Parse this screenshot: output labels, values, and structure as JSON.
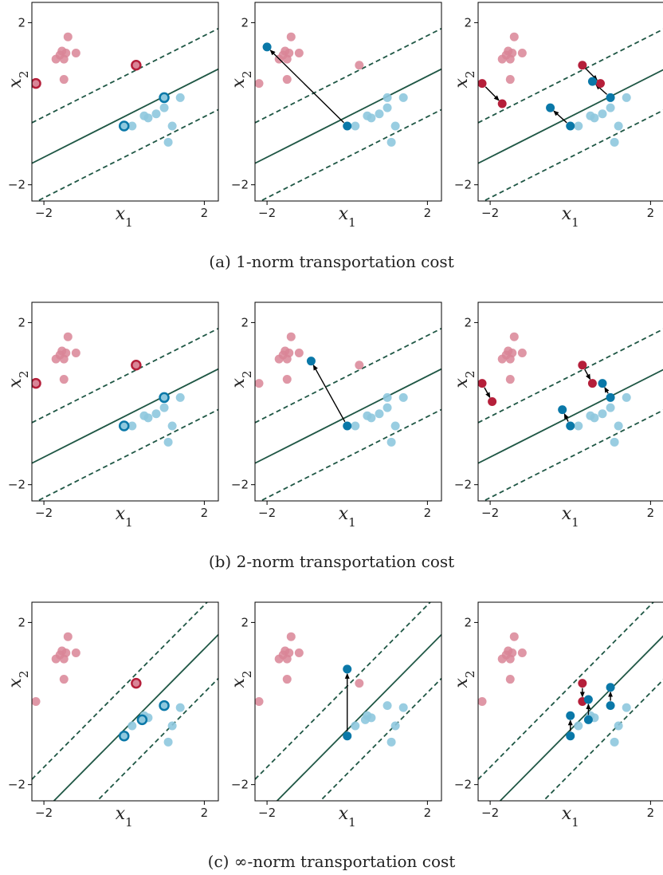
{
  "figure": {
    "captions": [
      "(a) 1-norm transportation cost",
      "(b) 2-norm transportation cost",
      "(c) ∞-norm transportation cost"
    ],
    "colors": {
      "red_faded": "#d98597",
      "red_strong": "#b51f3a",
      "blue_faded": "#8ec8de",
      "blue_strong": "#0a78a8",
      "line": "#1f5745",
      "arrow": "#000000"
    }
  },
  "chart_data": [
    {
      "type": "scatter",
      "row": "a",
      "panel": 1,
      "xlabel": "x_1",
      "ylabel": "x_2",
      "xlim": [
        -2.3,
        2.35
      ],
      "ylim": [
        -2.4,
        2.5
      ],
      "xticks": [
        -2,
        2
      ],
      "yticks": [
        -2,
        2
      ],
      "lines": {
        "slope": 0.5,
        "intercepts": [
          -0.32,
          0.68,
          -1.32
        ],
        "styles": [
          "solid",
          "dashed",
          "dashed"
        ]
      },
      "faded_red": [
        [
          -1.6,
          1.2
        ],
        [
          -1.4,
          1.65
        ],
        [
          -1.2,
          1.25
        ],
        [
          -1.7,
          1.1
        ],
        [
          -1.5,
          1.1
        ],
        [
          -1.45,
          1.25
        ],
        [
          -1.55,
          1.3
        ],
        [
          -1.5,
          0.6
        ]
      ],
      "faded_blue": [
        [
          0.8,
          -0.25
        ],
        [
          1.2,
          -0.55
        ],
        [
          0.2,
          -0.55
        ],
        [
          0.6,
          -0.35
        ],
        [
          0.5,
          -0.3
        ],
        [
          1.0,
          -0.1
        ],
        [
          1.4,
          0.15
        ],
        [
          1.1,
          -0.95
        ]
      ],
      "highlight_red": [
        [
          -2.2,
          0.5
        ],
        [
          0.3,
          0.95
        ]
      ],
      "highlight_blue": [
        [
          0.0,
          -0.55
        ],
        [
          1.0,
          0.15
        ]
      ],
      "points_red": [],
      "points_blue": [],
      "arrows": []
    },
    {
      "type": "scatter",
      "row": "a",
      "panel": 2,
      "xlabel": "x_1",
      "ylabel": "x_2",
      "xlim": [
        -2.3,
        2.35
      ],
      "ylim": [
        -2.4,
        2.5
      ],
      "xticks": [
        -2,
        2
      ],
      "yticks": [
        -2,
        2
      ],
      "lines": {
        "slope": 0.5,
        "intercepts": [
          -0.32,
          0.68,
          -1.32
        ],
        "styles": [
          "solid",
          "dashed",
          "dashed"
        ]
      },
      "faded_red": [
        [
          -1.6,
          1.2
        ],
        [
          -1.4,
          1.65
        ],
        [
          -1.2,
          1.25
        ],
        [
          -1.7,
          1.1
        ],
        [
          -1.5,
          1.1
        ],
        [
          -1.45,
          1.25
        ],
        [
          -1.55,
          1.3
        ],
        [
          -1.5,
          0.6
        ],
        [
          -2.2,
          0.5
        ],
        [
          0.3,
          0.95
        ]
      ],
      "faded_blue": [
        [
          0.8,
          -0.25
        ],
        [
          1.2,
          -0.55
        ],
        [
          0.2,
          -0.55
        ],
        [
          0.6,
          -0.35
        ],
        [
          0.5,
          -0.3
        ],
        [
          1.0,
          -0.1
        ],
        [
          1.4,
          0.15
        ],
        [
          1.1,
          -0.95
        ],
        [
          1.0,
          0.15
        ]
      ],
      "highlight_red": [],
      "highlight_blue": [],
      "points_red": [],
      "points_blue": [
        [
          0.0,
          -0.55
        ],
        [
          -2.0,
          1.4
        ]
      ],
      "arrows": [
        [
          [
            0.0,
            -0.55
          ],
          [
            -2.0,
            1.4
          ]
        ]
      ]
    },
    {
      "type": "scatter",
      "row": "a",
      "panel": 3,
      "xlabel": "x_1",
      "ylabel": "x_2",
      "xlim": [
        -2.3,
        2.35
      ],
      "ylim": [
        -2.4,
        2.5
      ],
      "xticks": [
        -2,
        2
      ],
      "yticks": [
        -2,
        2
      ],
      "lines": {
        "slope": 0.5,
        "intercepts": [
          -0.32,
          0.68,
          -1.32
        ],
        "styles": [
          "solid",
          "dashed",
          "dashed"
        ]
      },
      "faded_red": [
        [
          -1.6,
          1.2
        ],
        [
          -1.4,
          1.65
        ],
        [
          -1.2,
          1.25
        ],
        [
          -1.7,
          1.1
        ],
        [
          -1.5,
          1.1
        ],
        [
          -1.45,
          1.25
        ],
        [
          -1.55,
          1.3
        ],
        [
          -1.5,
          0.6
        ]
      ],
      "faded_blue": [
        [
          0.8,
          -0.25
        ],
        [
          1.2,
          -0.55
        ],
        [
          0.2,
          -0.55
        ],
        [
          0.6,
          -0.35
        ],
        [
          0.5,
          -0.3
        ],
        [
          1.0,
          -0.1
        ],
        [
          1.4,
          0.15
        ],
        [
          1.1,
          -0.95
        ]
      ],
      "highlight_red": [],
      "highlight_blue": [],
      "points_red": [
        [
          -2.2,
          0.5
        ],
        [
          -1.7,
          0.0
        ],
        [
          0.3,
          0.95
        ],
        [
          0.75,
          0.5
        ]
      ],
      "points_blue": [
        [
          0.0,
          -0.55
        ],
        [
          -0.5,
          -0.1
        ],
        [
          1.0,
          0.15
        ],
        [
          0.55,
          0.55
        ]
      ],
      "arrows": [
        [
          [
            -2.2,
            0.5
          ],
          [
            -1.7,
            0.0
          ]
        ],
        [
          [
            0.3,
            0.95
          ],
          [
            0.75,
            0.5
          ]
        ],
        [
          [
            0.0,
            -0.55
          ],
          [
            -0.5,
            -0.1
          ]
        ],
        [
          [
            1.0,
            0.15
          ],
          [
            0.55,
            0.55
          ]
        ]
      ]
    },
    {
      "type": "scatter",
      "row": "b",
      "panel": 1,
      "xlabel": "x_1",
      "ylabel": "x_2",
      "xlim": [
        -2.3,
        2.35
      ],
      "ylim": [
        -2.4,
        2.5
      ],
      "xticks": [
        -2,
        2
      ],
      "yticks": [
        -2,
        2
      ],
      "lines": {
        "slope": 0.5,
        "intercepts": [
          -0.32,
          0.68,
          -1.32
        ],
        "styles": [
          "solid",
          "dashed",
          "dashed"
        ]
      },
      "faded_red": [
        [
          -1.6,
          1.2
        ],
        [
          -1.4,
          1.65
        ],
        [
          -1.2,
          1.25
        ],
        [
          -1.7,
          1.1
        ],
        [
          -1.5,
          1.1
        ],
        [
          -1.45,
          1.25
        ],
        [
          -1.55,
          1.3
        ],
        [
          -1.5,
          0.6
        ]
      ],
      "faded_blue": [
        [
          0.8,
          -0.25
        ],
        [
          1.2,
          -0.55
        ],
        [
          0.2,
          -0.55
        ],
        [
          0.6,
          -0.35
        ],
        [
          0.5,
          -0.3
        ],
        [
          1.0,
          -0.1
        ],
        [
          1.4,
          0.15
        ],
        [
          1.1,
          -0.95
        ]
      ],
      "highlight_red": [
        [
          -2.2,
          0.5
        ],
        [
          0.3,
          0.95
        ]
      ],
      "highlight_blue": [
        [
          0.0,
          -0.55
        ],
        [
          1.0,
          0.15
        ]
      ],
      "points_red": [],
      "points_blue": [],
      "arrows": []
    },
    {
      "type": "scatter",
      "row": "b",
      "panel": 2,
      "xlabel": "x_1",
      "ylabel": "x_2",
      "xlim": [
        -2.3,
        2.35
      ],
      "ylim": [
        -2.4,
        2.5
      ],
      "xticks": [
        -2,
        2
      ],
      "yticks": [
        -2,
        2
      ],
      "lines": {
        "slope": 0.5,
        "intercepts": [
          -0.32,
          0.68,
          -1.32
        ],
        "styles": [
          "solid",
          "dashed",
          "dashed"
        ]
      },
      "faded_red": [
        [
          -1.6,
          1.2
        ],
        [
          -1.4,
          1.65
        ],
        [
          -1.2,
          1.25
        ],
        [
          -1.7,
          1.1
        ],
        [
          -1.5,
          1.1
        ],
        [
          -1.45,
          1.25
        ],
        [
          -1.55,
          1.3
        ],
        [
          -1.5,
          0.6
        ],
        [
          -2.2,
          0.5
        ],
        [
          0.3,
          0.95
        ]
      ],
      "faded_blue": [
        [
          0.8,
          -0.25
        ],
        [
          1.2,
          -0.55
        ],
        [
          0.2,
          -0.55
        ],
        [
          0.6,
          -0.35
        ],
        [
          0.5,
          -0.3
        ],
        [
          1.0,
          -0.1
        ],
        [
          1.4,
          0.15
        ],
        [
          1.1,
          -0.95
        ],
        [
          1.0,
          0.15
        ]
      ],
      "highlight_red": [],
      "highlight_blue": [],
      "points_red": [],
      "points_blue": [
        [
          0.0,
          -0.55
        ],
        [
          -0.9,
          1.05
        ]
      ],
      "arrows": [
        [
          [
            0.0,
            -0.55
          ],
          [
            -0.9,
            1.05
          ]
        ]
      ]
    },
    {
      "type": "scatter",
      "row": "b",
      "panel": 3,
      "xlabel": "x_1",
      "ylabel": "x_2",
      "xlim": [
        -2.3,
        2.35
      ],
      "ylim": [
        -2.4,
        2.5
      ],
      "xticks": [
        -2,
        2
      ],
      "yticks": [
        -2,
        2
      ],
      "lines": {
        "slope": 0.5,
        "intercepts": [
          -0.32,
          0.68,
          -1.32
        ],
        "styles": [
          "solid",
          "dashed",
          "dashed"
        ]
      },
      "faded_red": [
        [
          -1.6,
          1.2
        ],
        [
          -1.4,
          1.65
        ],
        [
          -1.2,
          1.25
        ],
        [
          -1.7,
          1.1
        ],
        [
          -1.5,
          1.1
        ],
        [
          -1.45,
          1.25
        ],
        [
          -1.55,
          1.3
        ],
        [
          -1.5,
          0.6
        ]
      ],
      "faded_blue": [
        [
          0.8,
          -0.25
        ],
        [
          1.2,
          -0.55
        ],
        [
          0.2,
          -0.55
        ],
        [
          0.6,
          -0.35
        ],
        [
          0.5,
          -0.3
        ],
        [
          1.0,
          -0.1
        ],
        [
          1.4,
          0.15
        ],
        [
          1.1,
          -0.95
        ]
      ],
      "highlight_red": [],
      "highlight_blue": [],
      "points_red": [
        [
          -2.2,
          0.5
        ],
        [
          -1.95,
          0.05
        ],
        [
          0.3,
          0.95
        ],
        [
          0.55,
          0.5
        ]
      ],
      "points_blue": [
        [
          0.0,
          -0.55
        ],
        [
          -0.2,
          -0.15
        ],
        [
          1.0,
          0.15
        ],
        [
          0.8,
          0.5
        ]
      ],
      "arrows": [
        [
          [
            -2.2,
            0.5
          ],
          [
            -1.95,
            0.05
          ]
        ],
        [
          [
            0.3,
            0.95
          ],
          [
            0.55,
            0.5
          ]
        ],
        [
          [
            0.0,
            -0.55
          ],
          [
            -0.2,
            -0.15
          ]
        ],
        [
          [
            1.0,
            0.15
          ],
          [
            0.8,
            0.5
          ]
        ]
      ]
    },
    {
      "type": "scatter",
      "row": "c",
      "panel": 1,
      "xlabel": "x_1",
      "ylabel": "x_2",
      "xlim": [
        -2.3,
        2.35
      ],
      "ylim": [
        -2.4,
        2.5
      ],
      "xticks": [
        -2,
        2
      ],
      "yticks": [
        -2,
        2
      ],
      "lines": {
        "slope": 1,
        "intercepts": [
          -0.65,
          0.43,
          -1.73
        ],
        "styles": [
          "solid",
          "dashed",
          "dashed"
        ]
      },
      "faded_red": [
        [
          -1.6,
          1.2
        ],
        [
          -1.4,
          1.65
        ],
        [
          -1.2,
          1.25
        ],
        [
          -1.7,
          1.1
        ],
        [
          -1.5,
          1.1
        ],
        [
          -1.45,
          1.25
        ],
        [
          -1.55,
          1.3
        ],
        [
          -1.5,
          0.6
        ],
        [
          -2.2,
          0.05
        ]
      ],
      "faded_blue": [
        [
          1.2,
          -0.55
        ],
        [
          0.2,
          -0.55
        ],
        [
          0.6,
          -0.35
        ],
        [
          0.5,
          -0.3
        ],
        [
          1.4,
          -0.1
        ],
        [
          1.1,
          -0.95
        ]
      ],
      "highlight_red": [
        [
          0.3,
          0.5
        ]
      ],
      "highlight_blue": [
        [
          0.0,
          -0.8
        ],
        [
          0.45,
          -0.4
        ],
        [
          1.0,
          -0.05
        ]
      ],
      "points_red": [],
      "points_blue": [],
      "arrows": []
    },
    {
      "type": "scatter",
      "row": "c",
      "panel": 2,
      "xlabel": "x_1",
      "ylabel": "x_2",
      "xlim": [
        -2.3,
        2.35
      ],
      "ylim": [
        -2.4,
        2.5
      ],
      "xticks": [
        -2,
        2
      ],
      "yticks": [
        -2,
        2
      ],
      "lines": {
        "slope": 1,
        "intercepts": [
          -0.65,
          0.43,
          -1.73
        ],
        "styles": [
          "solid",
          "dashed",
          "dashed"
        ]
      },
      "faded_red": [
        [
          -1.6,
          1.2
        ],
        [
          -1.4,
          1.65
        ],
        [
          -1.2,
          1.25
        ],
        [
          -1.7,
          1.1
        ],
        [
          -1.5,
          1.1
        ],
        [
          -1.45,
          1.25
        ],
        [
          -1.55,
          1.3
        ],
        [
          -1.5,
          0.6
        ],
        [
          -2.2,
          0.05
        ],
        [
          0.3,
          0.5
        ]
      ],
      "faded_blue": [
        [
          1.2,
          -0.55
        ],
        [
          0.2,
          -0.55
        ],
        [
          0.6,
          -0.35
        ],
        [
          0.5,
          -0.3
        ],
        [
          1.4,
          -0.1
        ],
        [
          1.1,
          -0.95
        ],
        [
          0.45,
          -0.4
        ],
        [
          1.0,
          -0.05
        ]
      ],
      "highlight_red": [],
      "highlight_blue": [],
      "points_red": [],
      "points_blue": [
        [
          0.0,
          -0.8
        ],
        [
          0.0,
          0.85
        ]
      ],
      "arrows": [
        [
          [
            0.0,
            -0.8
          ],
          [
            0.0,
            0.85
          ]
        ]
      ]
    },
    {
      "type": "scatter",
      "row": "c",
      "panel": 3,
      "xlabel": "x_1",
      "ylabel": "x_2",
      "xlim": [
        -2.3,
        2.35
      ],
      "ylim": [
        -2.4,
        2.5
      ],
      "xticks": [
        -2,
        2
      ],
      "yticks": [
        -2,
        2
      ],
      "lines": {
        "slope": 1,
        "intercepts": [
          -0.65,
          0.43,
          -1.73
        ],
        "styles": [
          "solid",
          "dashed",
          "dashed"
        ]
      },
      "faded_red": [
        [
          -1.6,
          1.2
        ],
        [
          -1.4,
          1.65
        ],
        [
          -1.2,
          1.25
        ],
        [
          -1.7,
          1.1
        ],
        [
          -1.5,
          1.1
        ],
        [
          -1.45,
          1.25
        ],
        [
          -1.55,
          1.3
        ],
        [
          -1.5,
          0.6
        ],
        [
          -2.2,
          0.05
        ]
      ],
      "faded_blue": [
        [
          1.2,
          -0.55
        ],
        [
          0.2,
          -0.55
        ],
        [
          0.6,
          -0.35
        ],
        [
          0.5,
          -0.3
        ],
        [
          1.4,
          -0.1
        ],
        [
          1.1,
          -0.95
        ]
      ],
      "highlight_red": [],
      "highlight_blue": [],
      "points_red": [
        [
          0.3,
          0.5
        ],
        [
          0.3,
          0.05
        ]
      ],
      "points_blue": [
        [
          0.0,
          -0.8
        ],
        [
          0.0,
          -0.3
        ],
        [
          0.45,
          -0.4
        ],
        [
          0.45,
          0.1
        ],
        [
          1.0,
          -0.05
        ],
        [
          1.0,
          0.4
        ]
      ],
      "arrows": [
        [
          [
            0.3,
            0.5
          ],
          [
            0.3,
            0.05
          ]
        ],
        [
          [
            0.0,
            -0.8
          ],
          [
            0.0,
            -0.3
          ]
        ],
        [
          [
            0.45,
            -0.4
          ],
          [
            0.45,
            0.1
          ]
        ],
        [
          [
            1.0,
            -0.05
          ],
          [
            1.0,
            0.4
          ]
        ]
      ]
    }
  ]
}
